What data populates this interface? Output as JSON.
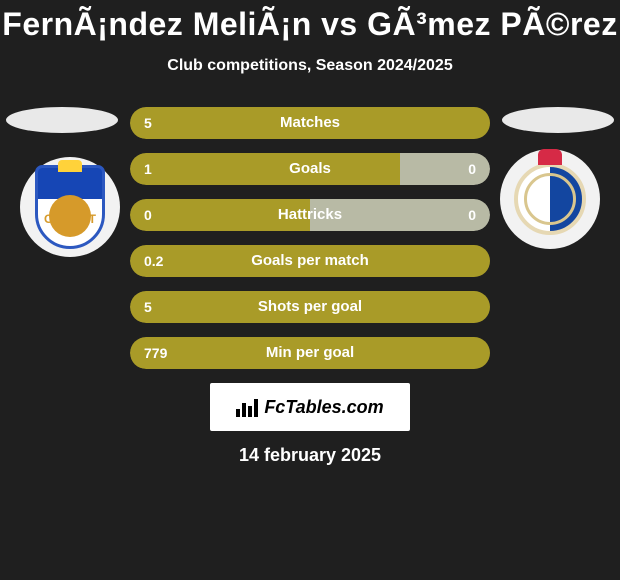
{
  "title": "FernÃ¡ndez MeliÃ¡n vs GÃ³mez PÃ©rez",
  "subtitle": "Club competitions, Season 2024/2025",
  "date_text": "14 february 2025",
  "site_label": "FcTables.com",
  "colors": {
    "player1": "#a99b28",
    "player2": "#b8baa5",
    "background": "#1f1f1f",
    "text": "#ffffff",
    "oval": "#e9e9e9",
    "site_box_bg": "#ffffff"
  },
  "team_logo": {
    "left": {
      "name": "CD Tenerife crest"
    },
    "right": {
      "name": "Deportivo La Coruña crest"
    }
  },
  "bars": [
    {
      "label": "Matches",
      "left_value": "5",
      "right_value": "",
      "left_pct": 100,
      "right_pct": 0
    },
    {
      "label": "Goals",
      "left_value": "1",
      "right_value": "0",
      "left_pct": 75,
      "right_pct": 25
    },
    {
      "label": "Hattricks",
      "left_value": "0",
      "right_value": "0",
      "left_pct": 50,
      "right_pct": 50
    },
    {
      "label": "Goals per match",
      "left_value": "0.2",
      "right_value": "",
      "left_pct": 100,
      "right_pct": 0
    },
    {
      "label": "Shots per goal",
      "left_value": "5",
      "right_value": "",
      "left_pct": 100,
      "right_pct": 0
    },
    {
      "label": "Min per goal",
      "left_value": "779",
      "right_value": "",
      "left_pct": 100,
      "right_pct": 0
    }
  ],
  "typography": {
    "title_fontsize": 32,
    "subtitle_fontsize": 16,
    "bar_label_fontsize": 15,
    "bar_value_fontsize": 14,
    "date_fontsize": 18
  }
}
